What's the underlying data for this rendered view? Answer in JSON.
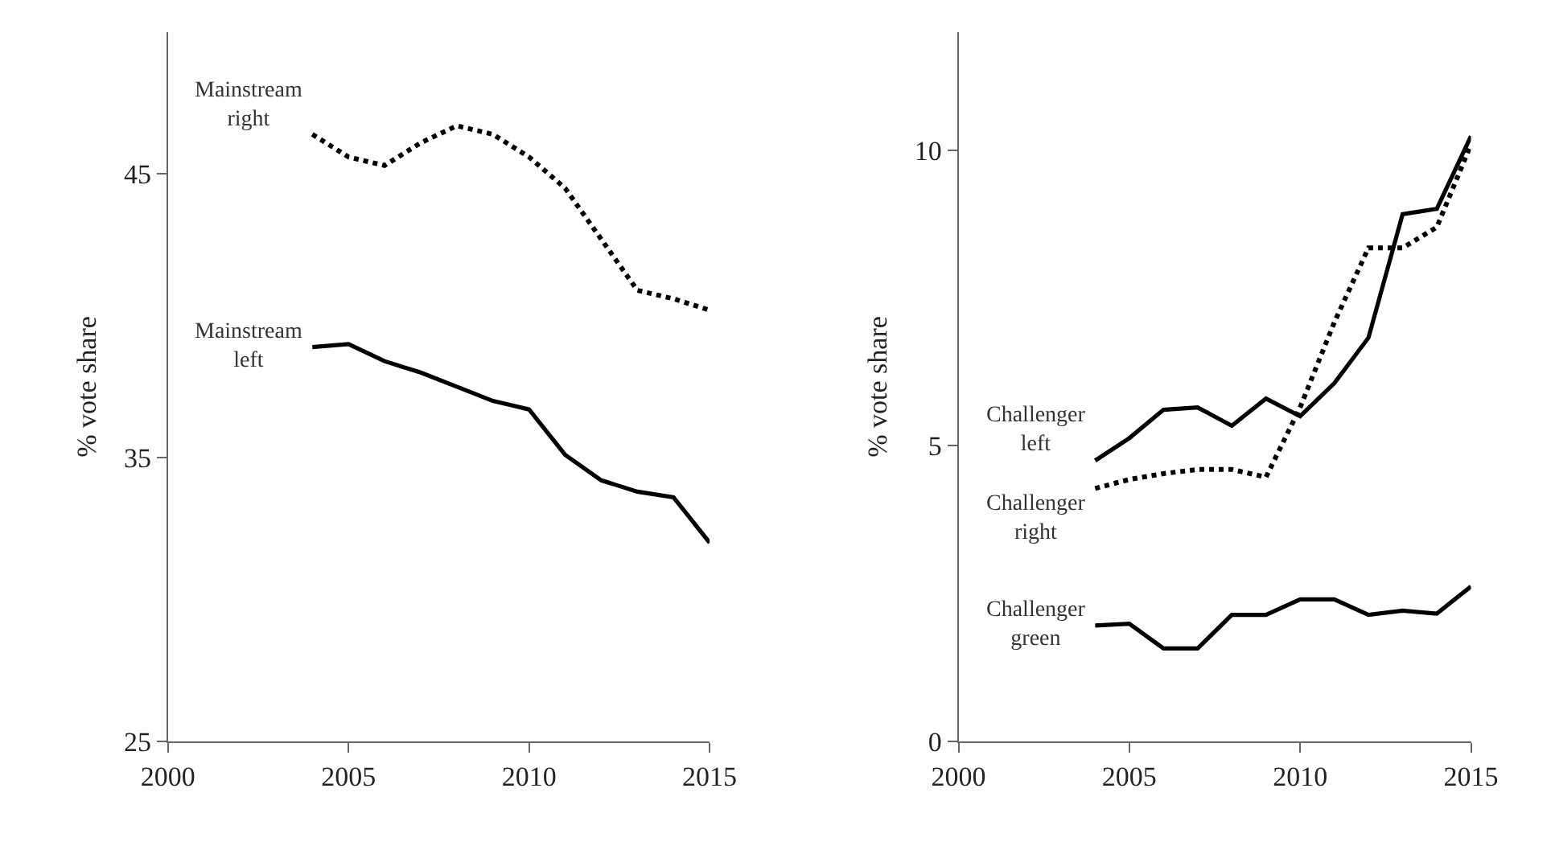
{
  "chart_data": [
    {
      "type": "line",
      "ylabel": "% vote share",
      "x": [
        2004,
        2005,
        2006,
        2007,
        2008,
        2009,
        2010,
        2011,
        2012,
        2013,
        2014,
        2015
      ],
      "xlim": [
        2000,
        2015
      ],
      "xticks": [
        2000,
        2005,
        2010,
        2015
      ],
      "ylim": [
        25,
        50
      ],
      "yticks": [
        25,
        35,
        45
      ],
      "series": [
        {
          "name": "Mainstream right",
          "color": "#000000",
          "line_style": "dotted",
          "values": [
            46.4,
            45.6,
            45.3,
            46.1,
            46.7,
            46.4,
            45.6,
            44.5,
            42.7,
            40.9,
            40.6,
            40.2
          ]
        },
        {
          "name": "Mainstream left",
          "color": "#000000",
          "line_style": "solid",
          "values": [
            38.9,
            39.0,
            38.4,
            38.0,
            37.5,
            37.0,
            36.7,
            35.1,
            34.2,
            33.8,
            33.6,
            32.0
          ]
        }
      ]
    },
    {
      "type": "line",
      "ylabel": "% vote share",
      "x": [
        2004,
        2005,
        2006,
        2007,
        2008,
        2009,
        2010,
        2011,
        2012,
        2013,
        2014,
        2015
      ],
      "xlim": [
        2000,
        2015
      ],
      "xticks": [
        2000,
        2005,
        2010,
        2015
      ],
      "ylim": [
        0,
        12
      ],
      "yticks": [
        0,
        5,
        10
      ],
      "series": [
        {
          "name": "Challenger left",
          "color": "#000000",
          "line_style": "solid",
          "values": [
            4.75,
            5.13,
            5.61,
            5.65,
            5.34,
            5.8,
            5.5,
            6.06,
            6.83,
            8.92,
            9.01,
            10.24
          ]
        },
        {
          "name": "Challenger right",
          "color": "#000000",
          "line_style": "dotted",
          "values": [
            4.28,
            4.43,
            4.53,
            4.6,
            4.6,
            4.47,
            5.65,
            7.09,
            8.35,
            8.35,
            8.7,
            10.1
          ]
        },
        {
          "name": "Challenger green",
          "color": "#000000",
          "line_style": "solid",
          "values": [
            1.96,
            1.99,
            1.57,
            1.57,
            2.14,
            2.14,
            2.4,
            2.4,
            2.14,
            2.21,
            2.16,
            2.62
          ]
        }
      ]
    }
  ]
}
